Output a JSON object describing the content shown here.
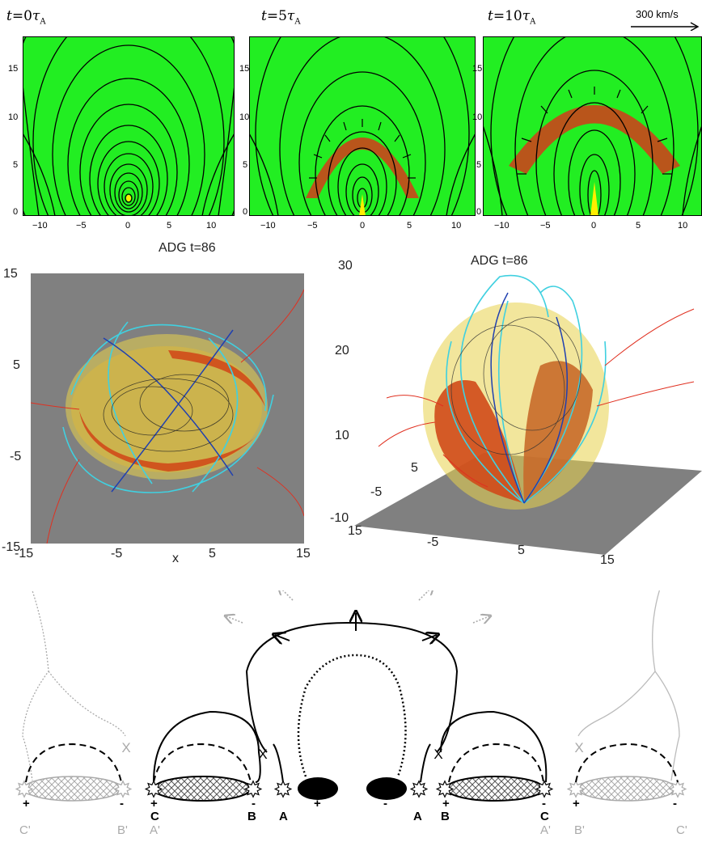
{
  "top_row": {
    "scale_label": "300 km/s",
    "panels": [
      {
        "label_t": "t",
        "label_eq": "=0",
        "label_tau": "τ",
        "label_sub": "A"
      },
      {
        "label_t": "t",
        "label_eq": "=5",
        "label_tau": "τ",
        "label_sub": "A"
      },
      {
        "label_t": "t",
        "label_eq": "=10",
        "label_tau": "τ",
        "label_sub": "A"
      }
    ],
    "x_ticks": [
      "−10",
      "−5",
      "0",
      "5",
      "10"
    ],
    "y_ticks": [
      "15",
      "10",
      "5",
      "0"
    ]
  },
  "middle_row": {
    "left": {
      "title": "ADG t=86",
      "x_ticks": [
        "-15",
        "-5",
        "5",
        "15"
      ],
      "x_label": "x",
      "y_ticks": [
        "15",
        "5",
        "-5",
        "-15"
      ]
    },
    "right": {
      "title": "ADG t=86",
      "z_ticks": [
        "30",
        "20",
        "10",
        "-10"
      ],
      "x_ticks": [
        "15",
        "-5",
        "5",
        "15"
      ],
      "y_ticks": [
        "5",
        "-5"
      ]
    }
  },
  "diagram": {
    "signs": [
      "+",
      "-",
      "+",
      "-",
      "+",
      "-",
      "+",
      "-",
      "+",
      "-"
    ],
    "labels": {
      "C_prime": "C'",
      "B_prime_l": "B'",
      "A_prime_l": "A'",
      "C_l": "C",
      "B_l": "B",
      "A_l": "A",
      "A_r": "A",
      "B_r": "B",
      "C_r": "C",
      "A_prime_r": "A'",
      "B_prime_r": "B'",
      "C_prime_r": "C'"
    },
    "x_marks": [
      "X",
      "X",
      "X",
      "X"
    ]
  },
  "colors": {
    "background_green": "#22ee22",
    "shell_red": "#d43a1a",
    "core_blue": "#0a1a5a",
    "yellow": "#ffee00",
    "gray_plane": "#808080",
    "cyan_lines": "#40d0e0",
    "red_lines": "#e03020"
  }
}
